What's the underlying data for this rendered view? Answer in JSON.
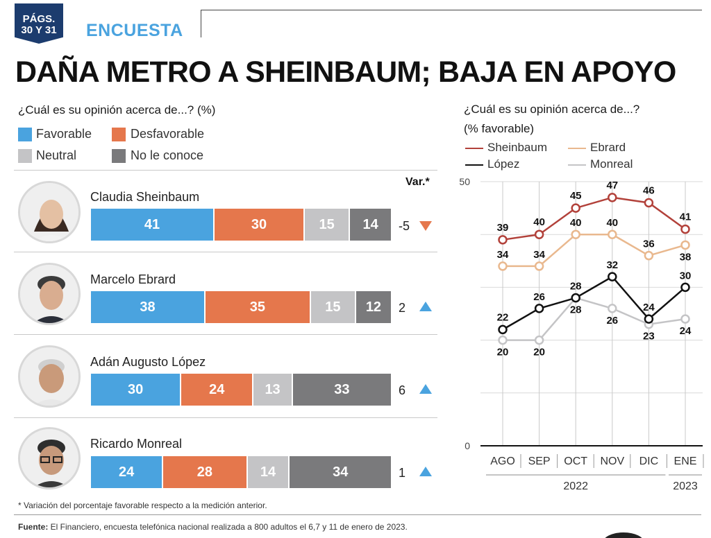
{
  "header": {
    "badge_line1": "PÁGS.",
    "badge_line2": "30 Y 31",
    "section": "ENCUESTA",
    "headline": "DAÑA METRO A SHEINBAUM; BAJA EN APOYO"
  },
  "left_panel": {
    "question": "¿Cuál es su opinión acerca de...? (%)",
    "var_header": "Var.*",
    "legend": [
      {
        "label": "Favorable",
        "color": "#4aa3df"
      },
      {
        "label": "Desfavorable",
        "color": "#e5774c"
      },
      {
        "label": "Neutral",
        "color": "#c4c4c6"
      },
      {
        "label": "No le conoce",
        "color": "#7a7a7c"
      }
    ],
    "candidates": [
      {
        "name": "Claudia Sheinbaum",
        "values": [
          41,
          30,
          15,
          14
        ],
        "var": "-5",
        "direction": "down"
      },
      {
        "name": "Marcelo Ebrard",
        "values": [
          38,
          35,
          15,
          12
        ],
        "var": "2",
        "direction": "up"
      },
      {
        "name": "Adán Augusto López",
        "values": [
          30,
          24,
          13,
          33
        ],
        "var": "6",
        "direction": "up"
      },
      {
        "name": "Ricardo Monreal",
        "values": [
          24,
          28,
          14,
          34
        ],
        "var": "1",
        "direction": "up"
      }
    ],
    "footnote": "* Variación del porcentaje favorable respecto a la medición anterior."
  },
  "source": {
    "label": "Fuente:",
    "text": " El Financiero, encuesta telefónica nacional realizada a 800 adultos el 6,7 y 11 de enero de 2023."
  },
  "chart_data": [
    {
      "type": "bar",
      "title": "¿Cuál es su opinión acerca de...? (%)",
      "stacked": true,
      "categories": [
        "Claudia Sheinbaum",
        "Marcelo Ebrard",
        "Adán Augusto López",
        "Ricardo Monreal"
      ],
      "series": [
        {
          "name": "Favorable",
          "values": [
            41,
            38,
            30,
            24
          ]
        },
        {
          "name": "Desfavorable",
          "values": [
            30,
            35,
            24,
            28
          ]
        },
        {
          "name": "Neutral",
          "values": [
            15,
            15,
            13,
            14
          ]
        },
        {
          "name": "No le conoce",
          "values": [
            14,
            12,
            33,
            34
          ]
        }
      ],
      "variation": [
        -5,
        2,
        6,
        1
      ]
    },
    {
      "type": "line",
      "title": "¿Cuál es su opinión acerca de...?",
      "subtitle": "(% favorable)",
      "x": [
        "AGO",
        "SEP",
        "OCT",
        "NOV",
        "DIC",
        "ENE"
      ],
      "year_labels": [
        {
          "label": "2022",
          "span": [
            "AGO",
            "DIC"
          ]
        },
        {
          "label": "2023",
          "span": [
            "ENE",
            "ENE"
          ]
        }
      ],
      "ylim": [
        0,
        50
      ],
      "y_ticks": [
        0,
        50
      ],
      "grid": true,
      "legend_position": "top",
      "series": [
        {
          "name": "Sheinbaum",
          "color": "#b2413a",
          "values": [
            39,
            40,
            45,
            47,
            46,
            41
          ]
        },
        {
          "name": "Ebrard",
          "color": "#e9b88e",
          "values": [
            34,
            34,
            40,
            40,
            36,
            38
          ]
        },
        {
          "name": "López",
          "color": "#111111",
          "values": [
            22,
            26,
            28,
            32,
            24,
            30
          ]
        },
        {
          "name": "Monreal",
          "color": "#c4c4c6",
          "values": [
            20,
            20,
            28,
            26,
            23,
            24
          ]
        }
      ]
    }
  ]
}
